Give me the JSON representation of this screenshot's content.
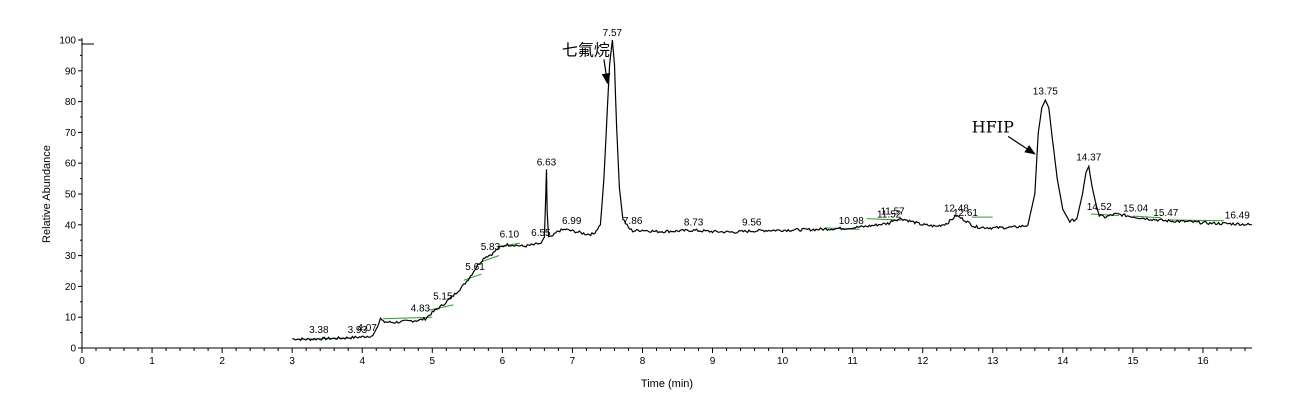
{
  "chart_data": {
    "type": "line",
    "title": "",
    "xlabel": "Time (min)",
    "ylabel": "Relative Abundance",
    "xlim": [
      0,
      16.7
    ],
    "ylim": [
      0,
      100
    ],
    "x_ticks": [
      0,
      1,
      2,
      3,
      4,
      5,
      6,
      7,
      8,
      9,
      10,
      11,
      12,
      13,
      14,
      15,
      16
    ],
    "x_tick_labels": [
      "0",
      "1",
      "2",
      "3",
      "4",
      "5",
      "6",
      "7",
      "8",
      "9",
      "10",
      "11",
      "12",
      "13",
      "14",
      "15",
      "16"
    ],
    "y_ticks": [
      0,
      10,
      20,
      30,
      40,
      50,
      60,
      70,
      80,
      90,
      100
    ],
    "y_tick_labels": [
      "0",
      "10",
      "20",
      "30",
      "40",
      "50",
      "60",
      "70",
      "80",
      "90",
      "100"
    ],
    "grid": false,
    "line_color": "#000000",
    "baseline_color": "#2e9a2e",
    "series": [
      {
        "x": [
          3.0,
          3.2,
          3.4,
          3.6,
          3.8,
          4.0,
          4.15,
          4.22,
          4.26,
          4.3,
          4.45,
          4.6,
          4.8,
          4.9,
          5.0,
          5.15,
          5.3,
          5.45,
          5.55,
          5.65,
          5.75,
          5.85,
          5.95,
          6.05,
          6.15,
          6.3,
          6.45,
          6.55,
          6.6,
          6.62,
          6.63,
          6.64,
          6.66,
          6.7,
          6.8,
          6.9,
          7.0,
          7.1,
          7.2,
          7.3,
          7.4,
          7.45,
          7.5,
          7.53,
          7.57,
          7.6,
          7.63,
          7.67,
          7.72,
          7.8,
          7.86,
          8.0,
          8.2,
          8.5,
          8.73,
          9.0,
          9.3,
          9.56,
          9.8,
          10.1,
          10.5,
          10.98,
          11.2,
          11.35,
          11.52,
          11.57,
          11.7,
          11.85,
          12.0,
          12.2,
          12.35,
          12.48,
          12.6,
          12.75,
          13.0,
          13.3,
          13.5,
          13.6,
          13.65,
          13.7,
          13.75,
          13.8,
          13.85,
          13.92,
          14.0,
          14.1,
          14.2,
          14.28,
          14.33,
          14.37,
          14.42,
          14.48,
          14.52,
          14.6,
          14.75,
          14.9,
          15.04,
          15.2,
          15.47,
          15.8,
          16.1,
          16.49,
          16.7
        ],
        "y": [
          3,
          2.8,
          3,
          3.1,
          3.3,
          3.6,
          4,
          7,
          9.5,
          8.5,
          8.3,
          8.6,
          9,
          9.5,
          11.5,
          14,
          17,
          20.5,
          23.5,
          27,
          29.5,
          30.5,
          32.5,
          33.5,
          33.5,
          33,
          33.5,
          34,
          36,
          50,
          58,
          44,
          36,
          36,
          38,
          38.5,
          38,
          37.5,
          37,
          37,
          40,
          55,
          78,
          92,
          100,
          92,
          72,
          52,
          42,
          39,
          38,
          38.3,
          37.8,
          38,
          38.2,
          37.8,
          37.6,
          38,
          38.2,
          38.3,
          38.5,
          39,
          39.5,
          40,
          40.5,
          41.5,
          42,
          41,
          40,
          39.5,
          40.5,
          43,
          41.5,
          39.3,
          39,
          39.2,
          39.8,
          50,
          70,
          78,
          80.5,
          78,
          68,
          55,
          45,
          41,
          42,
          50,
          57,
          59,
          52,
          46,
          43,
          42.5,
          43.5,
          43,
          42.5,
          42,
          41.3,
          41,
          40.5,
          40.3,
          40
        ]
      }
    ],
    "peak_labels": [
      {
        "text": "3.38",
        "x": 3.38,
        "y": 3.5
      },
      {
        "text": "3.93",
        "x": 3.93,
        "y": 3.5
      },
      {
        "text": "4.07",
        "x": 4.07,
        "y": 4.2
      },
      {
        "text": "4.83",
        "x": 4.83,
        "y": 10.5
      },
      {
        "text": "5.15",
        "x": 5.15,
        "y": 14.5
      },
      {
        "text": "5.61",
        "x": 5.61,
        "y": 24
      },
      {
        "text": "5.83",
        "x": 5.83,
        "y": 30.5
      },
      {
        "text": "6.10",
        "x": 6.1,
        "y": 34.5
      },
      {
        "text": "6.55",
        "x": 6.55,
        "y": 35
      },
      {
        "text": "6.63",
        "x": 6.63,
        "y": 58
      },
      {
        "text": "6.99",
        "x": 6.99,
        "y": 39
      },
      {
        "text": "7.57",
        "x": 7.57,
        "y": 100
      },
      {
        "text": "7.86",
        "x": 7.86,
        "y": 39
      },
      {
        "text": "8.73",
        "x": 8.73,
        "y": 38.5
      },
      {
        "text": "9.56",
        "x": 9.56,
        "y": 38.5
      },
      {
        "text": "10.98",
        "x": 10.98,
        "y": 39
      },
      {
        "text": "11.52",
        "x": 11.52,
        "y": 41
      },
      {
        "text": "11.57",
        "x": 11.57,
        "y": 42
      },
      {
        "text": "12.48",
        "x": 12.48,
        "y": 43
      },
      {
        "text": "12.61",
        "x": 12.61,
        "y": 41.5
      },
      {
        "text": "13.75",
        "x": 13.75,
        "y": 81
      },
      {
        "text": "14.37",
        "x": 14.37,
        "y": 59.5
      },
      {
        "text": "14.52",
        "x": 14.52,
        "y": 43.5
      },
      {
        "text": "15.04",
        "x": 15.04,
        "y": 43
      },
      {
        "text": "15.47",
        "x": 15.47,
        "y": 41.5
      },
      {
        "text": "16.49",
        "x": 16.49,
        "y": 40.8
      }
    ],
    "baseline_segments": [
      {
        "x1": 3.05,
        "y1": 2.8,
        "x2": 3.85,
        "y2": 3.3
      },
      {
        "x1": 4.3,
        "y1": 9.5,
        "x2": 5.0,
        "y2": 10.0
      },
      {
        "x1": 4.95,
        "y1": 12.3,
        "x2": 5.3,
        "y2": 14.0
      },
      {
        "x1": 5.45,
        "y1": 22.0,
        "x2": 5.7,
        "y2": 24.0
      },
      {
        "x1": 5.7,
        "y1": 28.0,
        "x2": 5.95,
        "y2": 30.0
      },
      {
        "x1": 5.95,
        "y1": 33.0,
        "x2": 6.25,
        "y2": 34.0
      },
      {
        "x1": 10.6,
        "y1": 39.0,
        "x2": 11.1,
        "y2": 38.5
      },
      {
        "x1": 11.2,
        "y1": 42.0,
        "x2": 11.7,
        "y2": 41.5
      },
      {
        "x1": 12.7,
        "y1": 42.5,
        "x2": 13.0,
        "y2": 42.5
      },
      {
        "x1": 14.4,
        "y1": 43.5,
        "x2": 14.8,
        "y2": 43.0
      },
      {
        "x1": 15.0,
        "y1": 42.8,
        "x2": 15.4,
        "y2": 42.3
      },
      {
        "x1": 15.5,
        "y1": 41.6,
        "x2": 16.3,
        "y2": 41.3
      }
    ],
    "annotations": [
      {
        "text": "七氟烷",
        "x": 6.85,
        "y": 95,
        "arrow_to": {
          "x": 7.5,
          "y": 86
        }
      },
      {
        "text": "HFIP",
        "x": 12.7,
        "y": 70,
        "arrow_to": {
          "x": 13.6,
          "y": 63
        }
      }
    ]
  }
}
